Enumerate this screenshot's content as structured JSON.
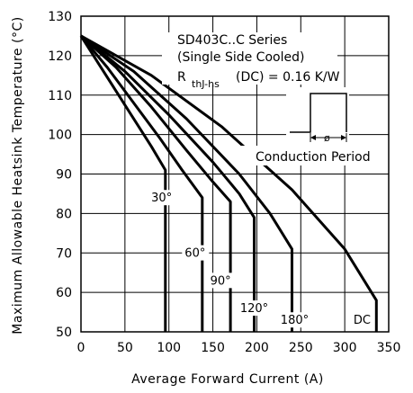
{
  "chart_data": {
    "type": "line",
    "xlabel": "Average Forward Current (A)",
    "ylabel": "Maximum Allowable Heatsink Temperature (°C)",
    "xlim": [
      0,
      350
    ],
    "ylim": [
      50,
      130
    ],
    "xticks": [
      "0",
      "50",
      "100",
      "150",
      "200",
      "250",
      "300",
      "350"
    ],
    "yticks": [
      "50",
      "60",
      "70",
      "80",
      "90",
      "100",
      "110",
      "120",
      "130"
    ],
    "grid": true,
    "annotation_lines": [
      "SD403C..C Series",
      "(Single Side Cooled)",
      "R",
      "thJ-hs",
      "(DC) = 0.16 K/W"
    ],
    "conduction_period_label": "Conduction Period",
    "phi_label": "ø",
    "series": [
      {
        "name": "30°",
        "points": [
          [
            0,
            125
          ],
          [
            20,
            118
          ],
          [
            40,
            111
          ],
          [
            60,
            104
          ],
          [
            80,
            97
          ],
          [
            96,
            91
          ],
          [
            96,
            50
          ]
        ]
      },
      {
        "name": "60°",
        "points": [
          [
            0,
            125
          ],
          [
            30,
            117
          ],
          [
            60,
            108
          ],
          [
            90,
            99
          ],
          [
            115,
            91
          ],
          [
            138,
            84
          ],
          [
            138,
            50
          ]
        ]
      },
      {
        "name": "90°",
        "points": [
          [
            0,
            125
          ],
          [
            40,
            117
          ],
          [
            80,
            107
          ],
          [
            120,
            96
          ],
          [
            150,
            88
          ],
          [
            170,
            83
          ],
          [
            170,
            50
          ]
        ]
      },
      {
        "name": "120°",
        "points": [
          [
            0,
            125
          ],
          [
            50,
            116
          ],
          [
            100,
            105
          ],
          [
            150,
            93
          ],
          [
            180,
            85
          ],
          [
            197,
            79
          ],
          [
            197,
            50
          ]
        ]
      },
      {
        "name": "180°",
        "points": [
          [
            0,
            125
          ],
          [
            60,
            116
          ],
          [
            120,
            104
          ],
          [
            180,
            90
          ],
          [
            215,
            80
          ],
          [
            240,
            71
          ],
          [
            240,
            50
          ]
        ]
      },
      {
        "name": "DC",
        "points": [
          [
            0,
            125
          ],
          [
            80,
            115
          ],
          [
            160,
            102
          ],
          [
            240,
            86
          ],
          [
            300,
            71
          ],
          [
            336,
            58
          ],
          [
            336,
            50
          ]
        ]
      }
    ],
    "curve_labels": [
      {
        "text": "30°",
        "x": 80,
        "y": 83
      },
      {
        "text": "60°",
        "x": 118,
        "y": 69
      },
      {
        "text": "90°",
        "x": 147,
        "y": 62
      },
      {
        "text": "120°",
        "x": 181,
        "y": 55
      },
      {
        "text": "180°",
        "x": 227,
        "y": 52
      },
      {
        "text": "DC",
        "x": 310,
        "y": 52
      }
    ]
  }
}
